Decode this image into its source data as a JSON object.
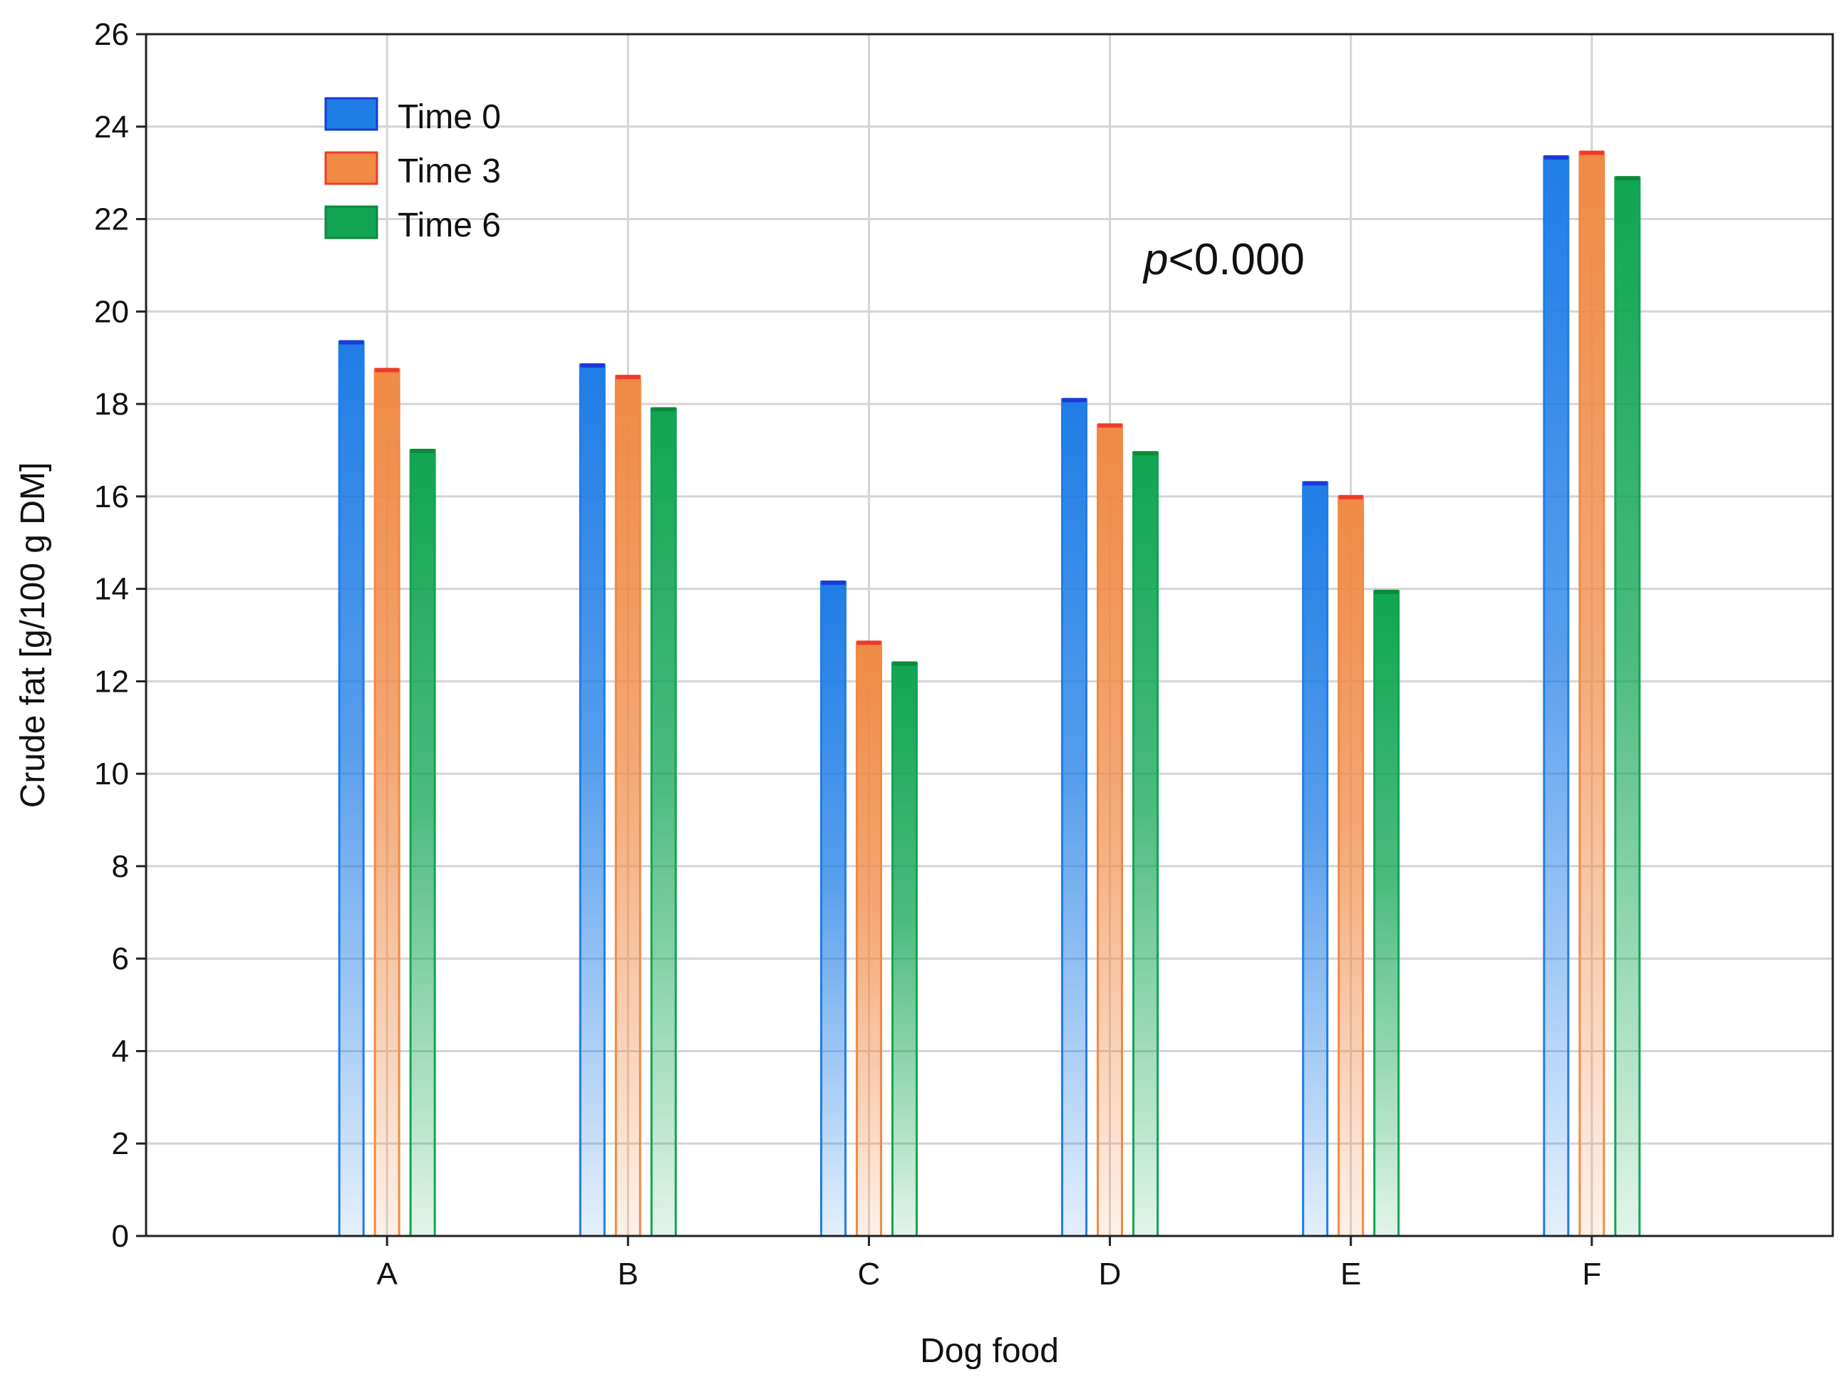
{
  "chart_data": {
    "type": "bar",
    "title": "",
    "xlabel": "Dog food",
    "ylabel": "Crude fat [g/100 g DM]",
    "categories": [
      "A",
      "B",
      "C",
      "D",
      "E",
      "F"
    ],
    "series": [
      {
        "name": "Time 0",
        "values": [
          19.35,
          18.85,
          14.15,
          18.1,
          16.3,
          23.35
        ],
        "color": "#1f7de6",
        "cap": "#1a3ad6"
      },
      {
        "name": "Time 3",
        "values": [
          18.75,
          18.6,
          12.85,
          17.55,
          16.0,
          23.45
        ],
        "color": "#f08a45",
        "cap": "#ee3a2a"
      },
      {
        "name": "Time 6",
        "values": [
          17.0,
          17.9,
          12.4,
          16.95,
          13.95,
          22.9
        ],
        "color": "#10a552",
        "cap": "#0c8a3a"
      }
    ],
    "ylim": [
      0,
      26
    ],
    "yticks": [
      "0",
      "2",
      "4",
      "6",
      "8",
      "10",
      "12",
      "14",
      "16",
      "18",
      "20",
      "22",
      "24",
      "26"
    ],
    "grid": true,
    "legend": "top-left",
    "annotation": {
      "italic": "p",
      "rest": "<0.000"
    }
  }
}
